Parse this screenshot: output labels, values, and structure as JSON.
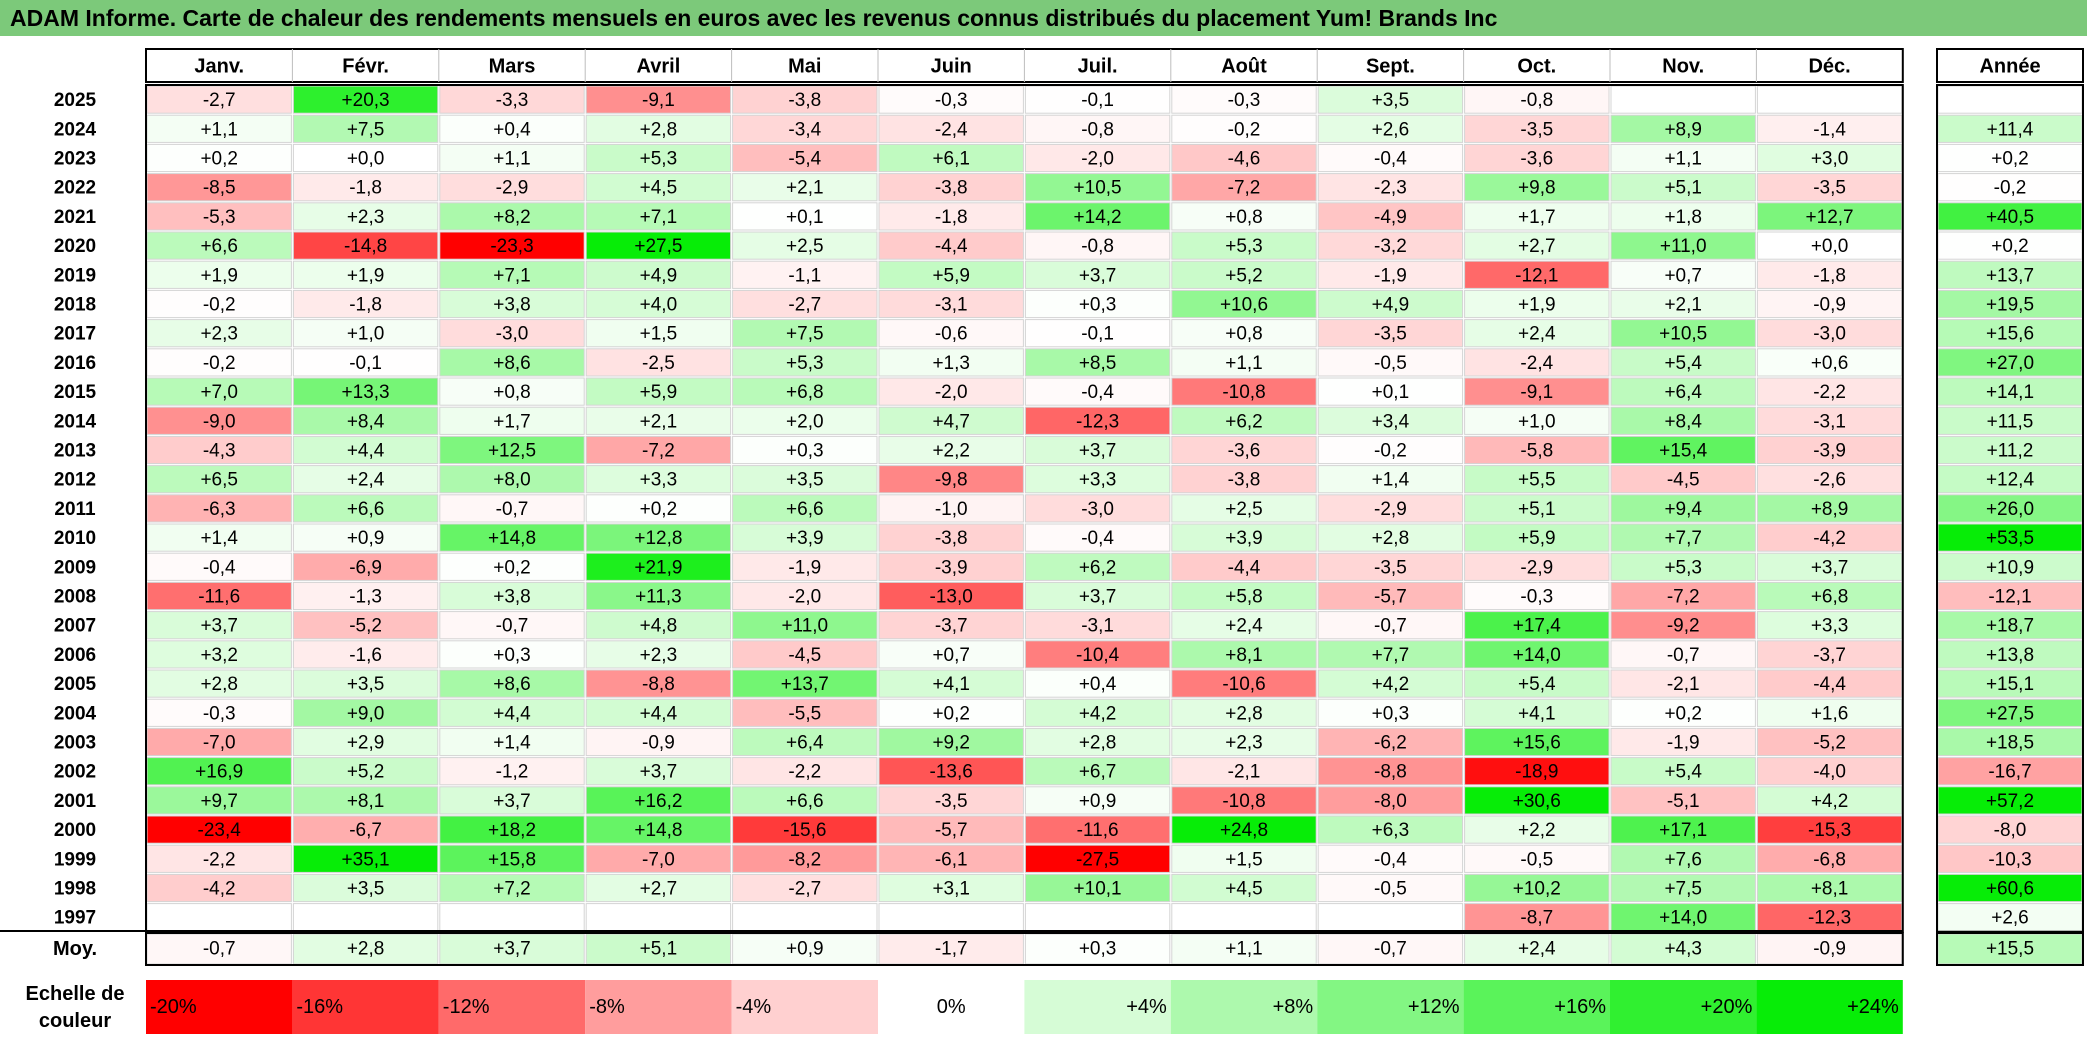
{
  "title": "ADAM Informe. Carte de chaleur des rendements mensuels en euros avec les revenus connus distribués du placement Yum! Brands Inc",
  "chart_data": {
    "type": "heatmap",
    "title": "ADAM Informe. Carte de chaleur des rendements mensuels en euros avec les revenus connus distribués du placement Yum! Brands Inc",
    "columns": [
      "Janv.",
      "Févr.",
      "Mars",
      "Avril",
      "Mai",
      "Juin",
      "Juil.",
      "Août",
      "Sept.",
      "Oct.",
      "Nov.",
      "Déc."
    ],
    "annual_header": "Année",
    "rows": [
      {
        "year": "2025",
        "values": [
          "-2,7",
          "+20,3",
          "-3,3",
          "-9,1",
          "-3,8",
          "-0,3",
          "-0,1",
          "-0,3",
          "+3,5",
          "-0,8",
          "",
          ""
        ],
        "annual": ""
      },
      {
        "year": "2024",
        "values": [
          "+1,1",
          "+7,5",
          "+0,4",
          "+2,8",
          "-3,4",
          "-2,4",
          "-0,8",
          "-0,2",
          "+2,6",
          "-3,5",
          "+8,9",
          "-1,4"
        ],
        "annual": "+11,4"
      },
      {
        "year": "2023",
        "values": [
          "+0,2",
          "+0,0",
          "+1,1",
          "+5,3",
          "-5,4",
          "+6,1",
          "-2,0",
          "-4,6",
          "-0,4",
          "-3,6",
          "+1,1",
          "+3,0"
        ],
        "annual": "+0,2"
      },
      {
        "year": "2022",
        "values": [
          "-8,5",
          "-1,8",
          "-2,9",
          "+4,5",
          "+2,1",
          "-3,8",
          "+10,5",
          "-7,2",
          "-2,3",
          "+9,8",
          "+5,1",
          "-3,5"
        ],
        "annual": "-0,2"
      },
      {
        "year": "2021",
        "values": [
          "-5,3",
          "+2,3",
          "+8,2",
          "+7,1",
          "+0,1",
          "-1,8",
          "+14,2",
          "+0,8",
          "-4,9",
          "+1,7",
          "+1,8",
          "+12,7"
        ],
        "annual": "+40,5"
      },
      {
        "year": "2020",
        "values": [
          "+6,6",
          "-14,8",
          "-23,3",
          "+27,5",
          "+2,5",
          "-4,4",
          "-0,8",
          "+5,3",
          "-3,2",
          "+2,7",
          "+11,0",
          "+0,0"
        ],
        "annual": "+0,2"
      },
      {
        "year": "2019",
        "values": [
          "+1,9",
          "+1,9",
          "+7,1",
          "+4,9",
          "-1,1",
          "+5,9",
          "+3,7",
          "+5,2",
          "-1,9",
          "-12,1",
          "+0,7",
          "-1,8"
        ],
        "annual": "+13,7"
      },
      {
        "year": "2018",
        "values": [
          "-0,2",
          "-1,8",
          "+3,8",
          "+4,0",
          "-2,7",
          "-3,1",
          "+0,3",
          "+10,6",
          "+4,9",
          "+1,9",
          "+2,1",
          "-0,9"
        ],
        "annual": "+19,5"
      },
      {
        "year": "2017",
        "values": [
          "+2,3",
          "+1,0",
          "-3,0",
          "+1,5",
          "+7,5",
          "-0,6",
          "-0,1",
          "+0,8",
          "-3,5",
          "+2,4",
          "+10,5",
          "-3,0"
        ],
        "annual": "+15,6"
      },
      {
        "year": "2016",
        "values": [
          "-0,2",
          "-0,1",
          "+8,6",
          "-2,5",
          "+5,3",
          "+1,3",
          "+8,5",
          "+1,1",
          "-0,5",
          "-2,4",
          "+5,4",
          "+0,6"
        ],
        "annual": "+27,0"
      },
      {
        "year": "2015",
        "values": [
          "+7,0",
          "+13,3",
          "+0,8",
          "+5,9",
          "+6,8",
          "-2,0",
          "-0,4",
          "-10,8",
          "+0,1",
          "-9,1",
          "+6,4",
          "-2,2"
        ],
        "annual": "+14,1"
      },
      {
        "year": "2014",
        "values": [
          "-9,0",
          "+8,4",
          "+1,7",
          "+2,1",
          "+2,0",
          "+4,7",
          "-12,3",
          "+6,2",
          "+3,4",
          "+1,0",
          "+8,4",
          "-3,1"
        ],
        "annual": "+11,5"
      },
      {
        "year": "2013",
        "values": [
          "-4,3",
          "+4,4",
          "+12,5",
          "-7,2",
          "+0,3",
          "+2,2",
          "+3,7",
          "-3,6",
          "-0,2",
          "-5,8",
          "+15,4",
          "-3,9"
        ],
        "annual": "+11,2"
      },
      {
        "year": "2012",
        "values": [
          "+6,5",
          "+2,4",
          "+8,0",
          "+3,3",
          "+3,5",
          "-9,8",
          "+3,3",
          "-3,8",
          "+1,4",
          "+5,5",
          "-4,5",
          "-2,6"
        ],
        "annual": "+12,4"
      },
      {
        "year": "2011",
        "values": [
          "-6,3",
          "+6,6",
          "-0,7",
          "+0,2",
          "+6,6",
          "-1,0",
          "-3,0",
          "+2,5",
          "-2,9",
          "+5,1",
          "+9,4",
          "+8,9"
        ],
        "annual": "+26,0"
      },
      {
        "year": "2010",
        "values": [
          "+1,4",
          "+0,9",
          "+14,8",
          "+12,8",
          "+3,9",
          "-3,8",
          "-0,4",
          "+3,9",
          "+2,8",
          "+5,9",
          "+7,7",
          "-4,2"
        ],
        "annual": "+53,5"
      },
      {
        "year": "2009",
        "values": [
          "-0,4",
          "-6,9",
          "+0,2",
          "+21,9",
          "-1,9",
          "-3,9",
          "+6,2",
          "-4,4",
          "-3,5",
          "-2,9",
          "+5,3",
          "+3,7"
        ],
        "annual": "+10,9"
      },
      {
        "year": "2008",
        "values": [
          "-11,6",
          "-1,3",
          "+3,8",
          "+11,3",
          "-2,0",
          "-13,0",
          "+3,7",
          "+5,8",
          "-5,7",
          "-0,3",
          "-7,2",
          "+6,8"
        ],
        "annual": "-12,1"
      },
      {
        "year": "2007",
        "values": [
          "+3,7",
          "-5,2",
          "-0,7",
          "+4,8",
          "+11,0",
          "-3,7",
          "-3,1",
          "+2,4",
          "-0,7",
          "+17,4",
          "-9,2",
          "+3,3"
        ],
        "annual": "+18,7"
      },
      {
        "year": "2006",
        "values": [
          "+3,2",
          "-1,6",
          "+0,3",
          "+2,3",
          "-4,5",
          "+0,7",
          "-10,4",
          "+8,1",
          "+7,7",
          "+14,0",
          "-0,7",
          "-3,7"
        ],
        "annual": "+13,8"
      },
      {
        "year": "2005",
        "values": [
          "+2,8",
          "+3,5",
          "+8,6",
          "-8,8",
          "+13,7",
          "+4,1",
          "+0,4",
          "-10,6",
          "+4,2",
          "+5,4",
          "-2,1",
          "-4,4"
        ],
        "annual": "+15,1"
      },
      {
        "year": "2004",
        "values": [
          "-0,3",
          "+9,0",
          "+4,4",
          "+4,4",
          "-5,5",
          "+0,2",
          "+4,2",
          "+2,8",
          "+0,3",
          "+4,1",
          "+0,2",
          "+1,6"
        ],
        "annual": "+27,5"
      },
      {
        "year": "2003",
        "values": [
          "-7,0",
          "+2,9",
          "+1,4",
          "-0,9",
          "+6,4",
          "+9,2",
          "+2,8",
          "+2,3",
          "-6,2",
          "+15,6",
          "-1,9",
          "-5,2"
        ],
        "annual": "+18,5"
      },
      {
        "year": "2002",
        "values": [
          "+16,9",
          "+5,2",
          "-1,2",
          "+3,7",
          "-2,2",
          "-13,6",
          "+6,7",
          "-2,1",
          "-8,8",
          "-18,9",
          "+5,4",
          "-4,0"
        ],
        "annual": "-16,7"
      },
      {
        "year": "2001",
        "values": [
          "+9,7",
          "+8,1",
          "+3,7",
          "+16,2",
          "+6,6",
          "-3,5",
          "+0,9",
          "-10,8",
          "-8,0",
          "+30,6",
          "-5,1",
          "+4,2"
        ],
        "annual": "+57,2"
      },
      {
        "year": "2000",
        "values": [
          "-23,4",
          "-6,7",
          "+18,2",
          "+14,8",
          "-15,6",
          "-5,7",
          "-11,6",
          "+24,8",
          "+6,3",
          "+2,2",
          "+17,1",
          "-15,3"
        ],
        "annual": "-8,0"
      },
      {
        "year": "1999",
        "values": [
          "-2,2",
          "+35,1",
          "+15,8",
          "-7,0",
          "-8,2",
          "-6,1",
          "-27,5",
          "+1,5",
          "-0,4",
          "-0,5",
          "+7,6",
          "-6,8"
        ],
        "annual": "-10,3"
      },
      {
        "year": "1998",
        "values": [
          "-4,2",
          "+3,5",
          "+7,2",
          "+2,7",
          "-2,7",
          "+3,1",
          "+10,1",
          "+4,5",
          "-0,5",
          "+10,2",
          "+7,5",
          "+8,1"
        ],
        "annual": "+60,6"
      },
      {
        "year": "1997",
        "values": [
          "",
          "",
          "",
          "",
          "",
          "",
          "",
          "",
          "",
          "-8,7",
          "+14,0",
          "-12,3"
        ],
        "annual": "+2,6"
      }
    ],
    "average": {
      "label": "Moy.",
      "values": [
        "-0,7",
        "+2,8",
        "+3,7",
        "+5,1",
        "+0,9",
        "-1,7",
        "+0,3",
        "+1,1",
        "-0,7",
        "+2,4",
        "+4,3",
        "-0,9"
      ],
      "annual": "+15,5"
    },
    "scale": {
      "label_line1": "Echelle de",
      "label_line2": "couleur",
      "stops": [
        {
          "label": "-20%",
          "value": -20,
          "color": "#ff0000"
        },
        {
          "label": "-16%",
          "value": -16,
          "color": "#ff3535"
        },
        {
          "label": "-12%",
          "value": -12,
          "color": "#ff6a6a"
        },
        {
          "label": "-8%",
          "value": -8,
          "color": "#ff9d9d"
        },
        {
          "label": "-4%",
          "value": -4,
          "color": "#ffd0d0"
        },
        {
          "label": "0%",
          "value": 0,
          "color": "#ffffff"
        },
        {
          "label": "+4%",
          "value": 4,
          "color": "#d6fcd6"
        },
        {
          "label": "+8%",
          "value": 8,
          "color": "#adf9ad"
        },
        {
          "label": "+12%",
          "value": 12,
          "color": "#83f683"
        },
        {
          "label": "+16%",
          "value": 16,
          "color": "#5af35a"
        },
        {
          "label": "+20%",
          "value": 20,
          "color": "#30f030"
        },
        {
          "label": "+24%",
          "value": 24,
          "color": "#07ed07"
        }
      ]
    }
  }
}
